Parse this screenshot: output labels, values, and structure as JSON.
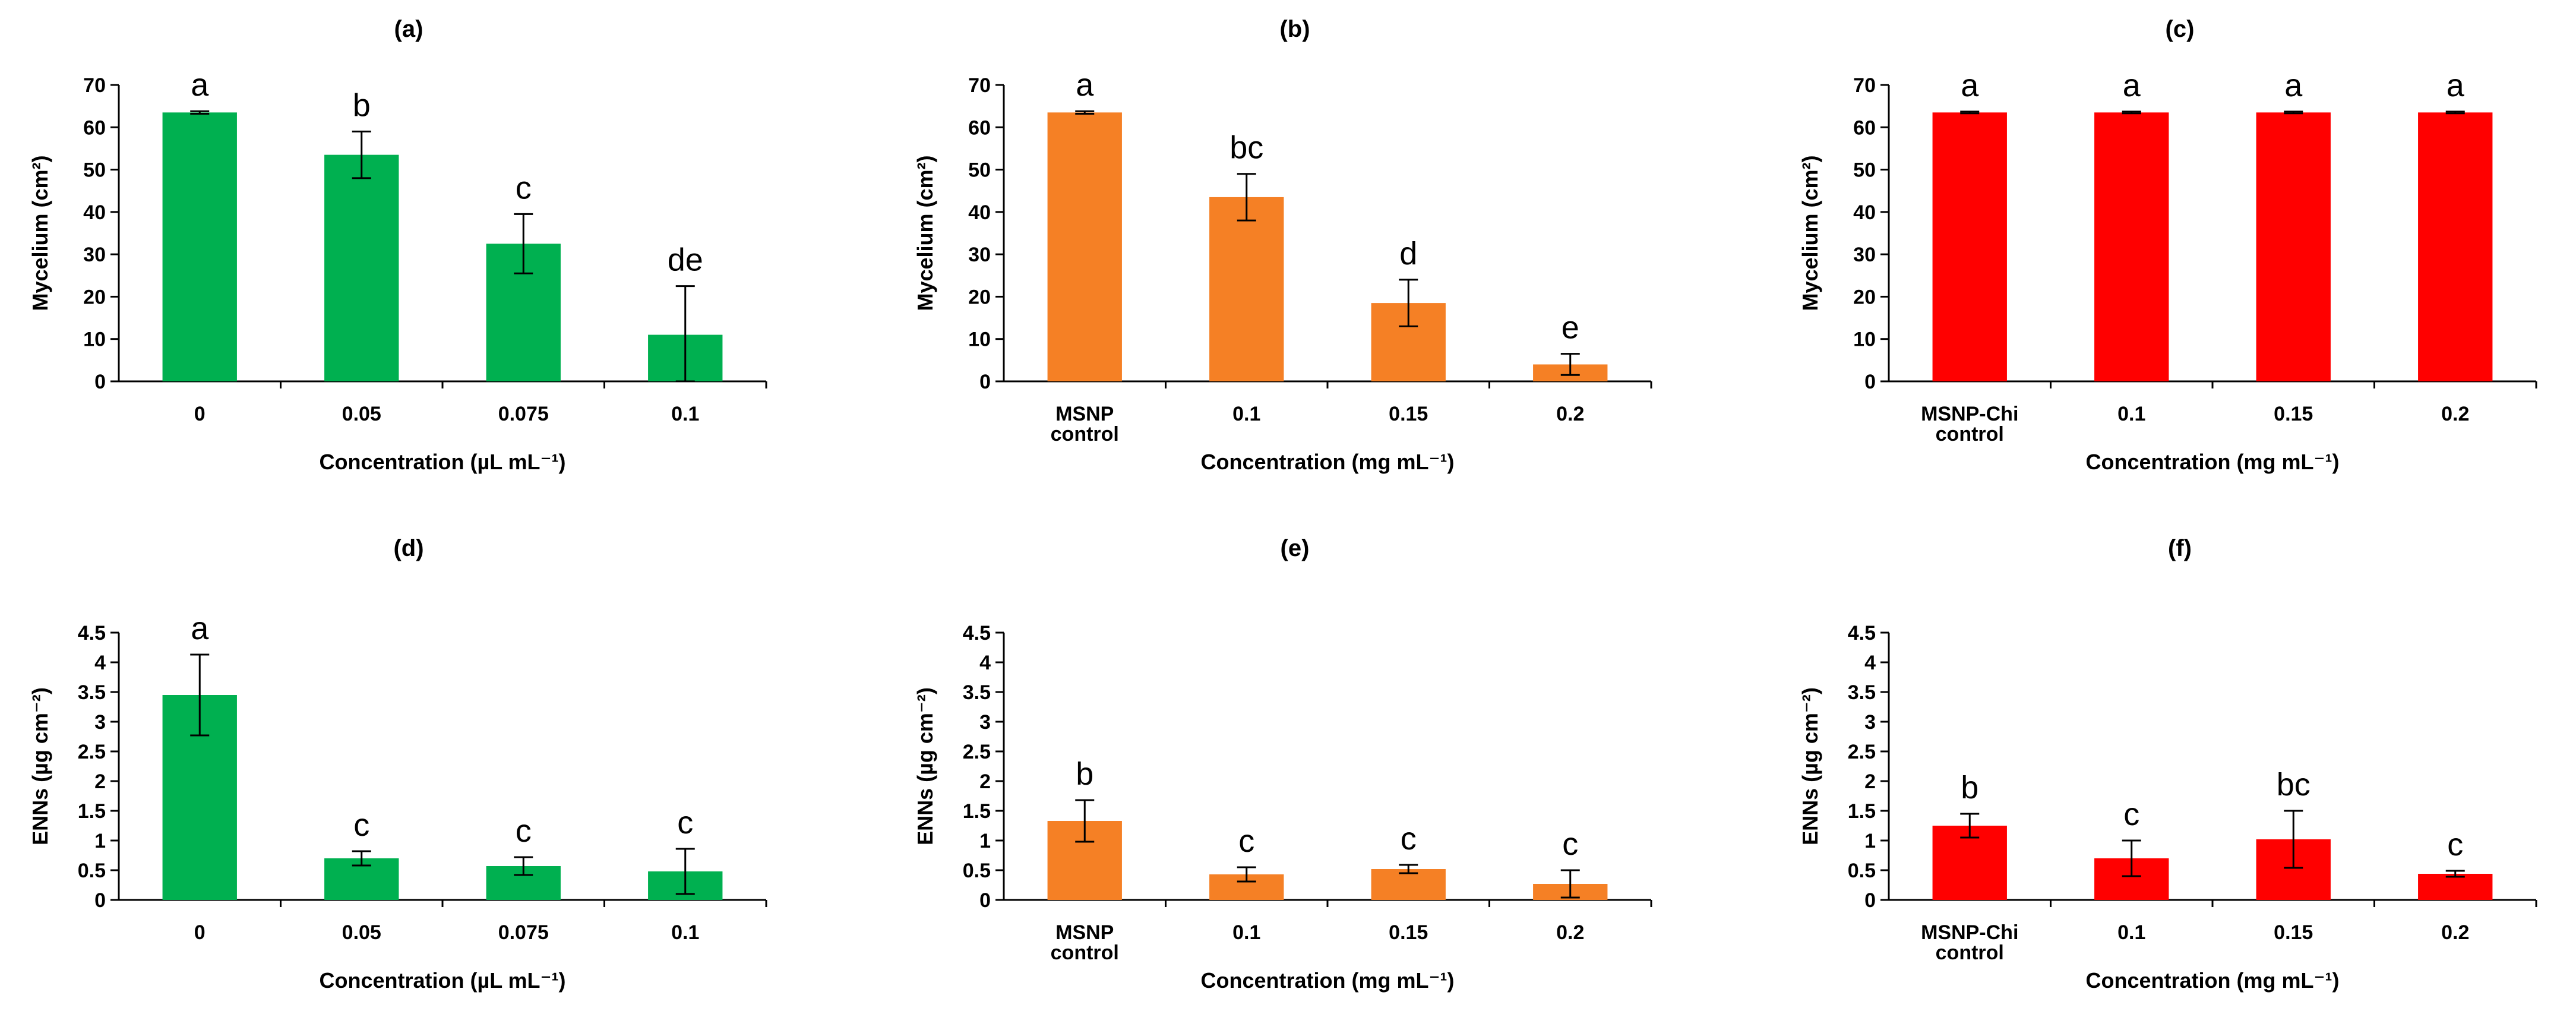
{
  "chart_data": [
    {
      "panel": "(a)",
      "type": "bar",
      "categories": [
        "0",
        "0.05",
        "0.075",
        "0.1"
      ],
      "values": [
        63.5,
        53.5,
        32.5,
        11
      ],
      "errors": [
        0.3,
        5.5,
        7,
        11.5
      ],
      "letters": [
        "a",
        "b",
        "c",
        "de"
      ],
      "ylabel": "Mycelium (cm²)",
      "xlabel": "Concentration (µL mL⁻¹)",
      "ylim": [
        0,
        70
      ],
      "yticks": [
        0,
        10,
        20,
        30,
        40,
        50,
        60,
        70
      ],
      "color": "#00b050"
    },
    {
      "panel": "(b)",
      "type": "bar",
      "categories": [
        "MSNP control",
        "0.1",
        "0.15",
        "0.2"
      ],
      "values": [
        63.5,
        43.5,
        18.5,
        4
      ],
      "errors": [
        0.3,
        5.5,
        5.5,
        2.5
      ],
      "letters": [
        "a",
        "bc",
        "d",
        "e"
      ],
      "ylabel": "Mycelium (cm²)",
      "xlabel": "Concentration (mg mL⁻¹)",
      "ylim": [
        0,
        70
      ],
      "yticks": [
        0,
        10,
        20,
        30,
        40,
        50,
        60,
        70
      ],
      "color": "#f58025"
    },
    {
      "panel": "(c)",
      "type": "bar",
      "categories": [
        "MSNP-Chi control",
        "0.1",
        "0.15",
        "0.2"
      ],
      "values": [
        63.5,
        63.5,
        63.5,
        63.5
      ],
      "errors": [
        0.2,
        0.2,
        0.2,
        0.2
      ],
      "letters": [
        "a",
        "a",
        "a",
        "a"
      ],
      "ylabel": "Mycelium (cm²)",
      "xlabel": "Concentration (mg mL⁻¹)",
      "ylim": [
        0,
        70
      ],
      "yticks": [
        0,
        10,
        20,
        30,
        40,
        50,
        60,
        70
      ],
      "color": "#ff0000"
    },
    {
      "panel": "(d)",
      "type": "bar",
      "categories": [
        "0",
        "0.05",
        "0.075",
        "0.1"
      ],
      "values": [
        3.45,
        0.7,
        0.57,
        0.48
      ],
      "errors": [
        0.68,
        0.12,
        0.15,
        0.38
      ],
      "letters": [
        "a",
        "c",
        "c",
        "c"
      ],
      "ylabel": "ENNs (µg cm⁻²)",
      "xlabel": "Concentration (µL mL⁻¹)",
      "ylim": [
        0,
        4.5
      ],
      "yticks": [
        0,
        0.5,
        1,
        1.5,
        2,
        2.5,
        3,
        3.5,
        4,
        4.5
      ],
      "color": "#00b050"
    },
    {
      "panel": "(e)",
      "type": "bar",
      "categories": [
        "MSNP control",
        "0.1",
        "0.15",
        "0.2"
      ],
      "values": [
        1.33,
        0.43,
        0.52,
        0.27
      ],
      "errors": [
        0.35,
        0.12,
        0.07,
        0.23
      ],
      "letters": [
        "b",
        "c",
        "c",
        "c"
      ],
      "ylabel": "ENNs (µg cm⁻²)",
      "xlabel": "Concentration (mg mL⁻¹)",
      "ylim": [
        0,
        4.5
      ],
      "yticks": [
        0,
        0.5,
        1,
        1.5,
        2,
        2.5,
        3,
        3.5,
        4,
        4.5
      ],
      "color": "#f58025"
    },
    {
      "panel": "(f)",
      "type": "bar",
      "categories": [
        "MSNP-Chi control",
        "0.1",
        "0.15",
        "0.2"
      ],
      "values": [
        1.25,
        0.7,
        1.02,
        0.44
      ],
      "errors": [
        0.2,
        0.3,
        0.48,
        0.05
      ],
      "letters": [
        "b",
        "c",
        "bc",
        "c"
      ],
      "ylabel": "ENNs (µg cm⁻²)",
      "xlabel": "Concentration (mg mL⁻¹)",
      "ylim": [
        0,
        4.5
      ],
      "yticks": [
        0,
        0.5,
        1,
        1.5,
        2,
        2.5,
        3,
        3.5,
        4,
        4.5
      ],
      "color": "#ff0000"
    }
  ]
}
